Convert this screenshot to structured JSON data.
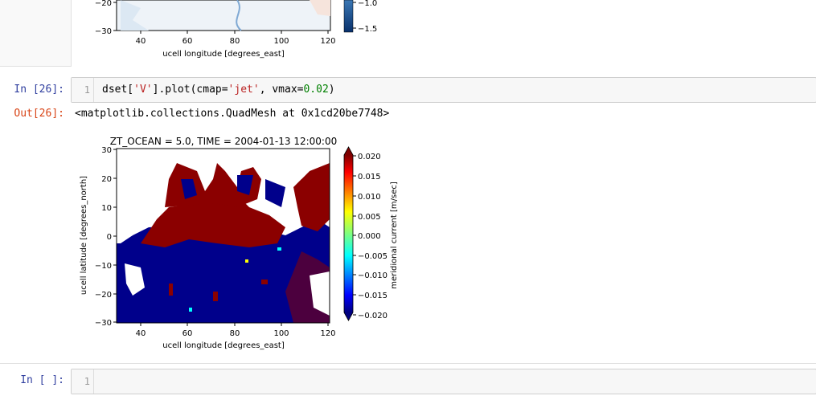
{
  "prev_plot": {
    "x_ticks": [
      "40",
      "60",
      "80",
      "100",
      "120"
    ],
    "y_ticks": [
      "−20",
      "−30"
    ],
    "cbar_ticks": [
      "−1.0",
      "−1.5"
    ],
    "xlabel": "ucell longitude [degrees_east]"
  },
  "cell_26": {
    "in_prompt": "In [26]:",
    "line_number": "1",
    "code_prefix": "dset[",
    "code_str1": "'V'",
    "code_mid": "].plot(cmap=",
    "code_str2": "'jet'",
    "code_mid2": ", vmax=",
    "code_num": "0.02",
    "code_suffix": ")",
    "out_prompt": "Out[26]:",
    "out_text": "<matplotlib.collections.QuadMesh at 0x1cd20be7748>"
  },
  "plot": {
    "title": "ZT_OCEAN = 5.0, TIME = 2004-01-13 12:00:00",
    "xlabel": "ucell longitude [degrees_east]",
    "ylabel": "ucell latitude [degrees_north]",
    "cbar_label": "meridional current [m/sec]",
    "x_ticks": [
      "40",
      "60",
      "80",
      "100",
      "120"
    ],
    "y_ticks": [
      "30",
      "20",
      "10",
      "0",
      "−10",
      "−20",
      "−30"
    ],
    "cbar_ticks": [
      "0.020",
      "0.015",
      "0.010",
      "0.005",
      "0.000",
      "−0.005",
      "−0.010",
      "−0.015",
      "−0.020"
    ],
    "colormap": "jet",
    "colors": {
      "positive": "#8b0000",
      "negative": "#00008b",
      "land": "#ffffff"
    }
  },
  "cell_empty": {
    "in_prompt": "In [ ]:",
    "line_number": "1"
  }
}
